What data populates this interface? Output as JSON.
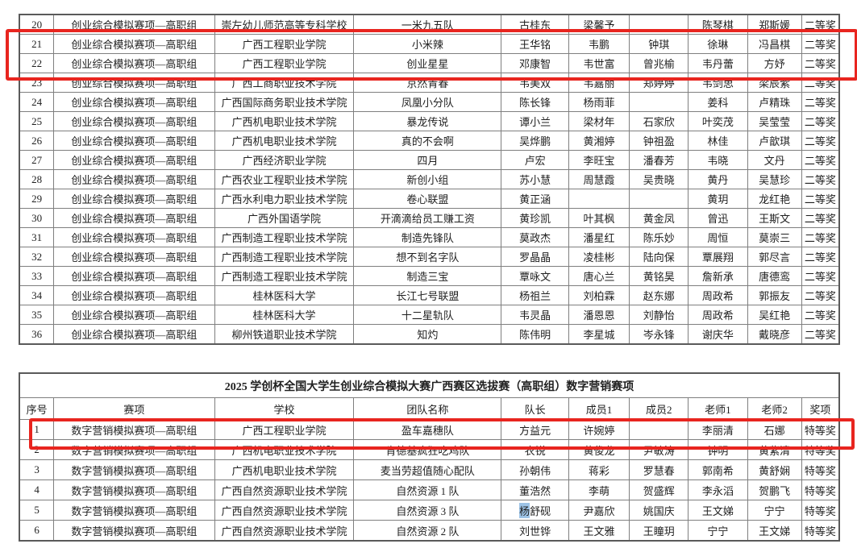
{
  "annotations": {
    "box_color": "#e8251f",
    "selection_color": "#9dc3e6",
    "top_box_label": "rows 21-22 highlighted",
    "bottom_box_label": "row 1 highlighted"
  },
  "top_table": {
    "rows": [
      {
        "no": "20",
        "event": "创业综合模拟赛项—高职组",
        "school": "崇左幼儿师范高等专科学校",
        "team": "一米九五队",
        "captain": "古桂东",
        "member1": "梁馨予",
        "member2": "",
        "teacher1": "陈琴棋",
        "teacher2": "郑斯媛",
        "award": "二等奖"
      },
      {
        "no": "21",
        "event": "创业综合模拟赛项—高职组",
        "school": "广西工程职业学院",
        "team": "小米辣",
        "captain": "王华铭",
        "member1": "韦鹏",
        "member2": "钟琪",
        "teacher1": "徐琳",
        "teacher2": "冯昌棋",
        "award": "二等奖"
      },
      {
        "no": "22",
        "event": "创业综合模拟赛项—高职组",
        "school": "广西工程职业学院",
        "team": "创业星星",
        "captain": "邓康智",
        "member1": "韦世富",
        "member2": "曾兆榆",
        "teacher1": "韦丹蕾",
        "teacher2": "方妤",
        "award": "二等奖"
      },
      {
        "no": "23",
        "event": "创业综合模拟赛项—高职组",
        "school": "广西工商职业技术学院",
        "team": "京然青春",
        "captain": "韦美双",
        "member1": "韦嘉丽",
        "member2": "郑婷婷",
        "teacher1": "韦剑思",
        "teacher2": "梁辰紫",
        "award": "二等奖"
      },
      {
        "no": "24",
        "event": "创业综合模拟赛项—高职组",
        "school": "广西国际商务职业技术学院",
        "team": "凤凰小分队",
        "captain": "陈长锋",
        "member1": "杨雨菲",
        "member2": "",
        "teacher1": "姜科",
        "teacher2": "卢精珠",
        "award": "二等奖"
      },
      {
        "no": "25",
        "event": "创业综合模拟赛项—高职组",
        "school": "广西机电职业技术学院",
        "team": "暴龙传说",
        "captain": "谭小兰",
        "member1": "梁材年",
        "member2": "石家欣",
        "teacher1": "叶奕茂",
        "teacher2": "吴莹莹",
        "award": "二等奖"
      },
      {
        "no": "26",
        "event": "创业综合模拟赛项—高职组",
        "school": "广西机电职业技术学院",
        "team": "真的不会啊",
        "captain": "吴烨鹏",
        "member1": "黄湘婷",
        "member2": "钟祖盈",
        "teacher1": "林佳",
        "teacher2": "卢歆琪",
        "award": "二等奖"
      },
      {
        "no": "27",
        "event": "创业综合模拟赛项—高职组",
        "school": "广西经济职业学院",
        "team": "四月",
        "captain": "卢宏",
        "member1": "李旺宝",
        "member2": "潘春芳",
        "teacher1": "韦晓",
        "teacher2": "文丹",
        "award": "二等奖"
      },
      {
        "no": "28",
        "event": "创业综合模拟赛项—高职组",
        "school": "广西农业工程职业技术学院",
        "team": "新创小组",
        "captain": "苏小慧",
        "member1": "周慧霞",
        "member2": "吴贵晓",
        "teacher1": "黄丹",
        "teacher2": "吴慧珍",
        "award": "二等奖"
      },
      {
        "no": "29",
        "event": "创业综合模拟赛项—高职组",
        "school": "广西水利电力职业技术学院",
        "team": "卷心联盟",
        "captain": "黄正涵",
        "member1": "",
        "member2": "",
        "teacher1": "黄玥",
        "teacher2": "龙红艳",
        "award": "二等奖"
      },
      {
        "no": "30",
        "event": "创业综合模拟赛项—高职组",
        "school": "广西外国语学院",
        "team": "开滴滴给员工赚工资",
        "captain": "黄珍凯",
        "member1": "叶其枫",
        "member2": "黄金凤",
        "teacher1": "曾迅",
        "teacher2": "王斯文",
        "award": "二等奖"
      },
      {
        "no": "31",
        "event": "创业综合模拟赛项—高职组",
        "school": "广西制造工程职业技术学院",
        "team": "制造先锋队",
        "captain": "莫政杰",
        "member1": "潘星红",
        "member2": "陈乐妙",
        "teacher1": "周恒",
        "teacher2": "莫崇三",
        "award": "二等奖"
      },
      {
        "no": "32",
        "event": "创业综合模拟赛项—高职组",
        "school": "广西制造工程职业技术学院",
        "team": "想不到名字队",
        "captain": "罗晶晶",
        "member1": "凌桂彬",
        "member2": "陆向保",
        "teacher1": "覃展翔",
        "teacher2": "郭尽言",
        "award": "二等奖"
      },
      {
        "no": "33",
        "event": "创业综合模拟赛项—高职组",
        "school": "广西制造工程职业技术学院",
        "team": "制造三宝",
        "captain": "覃咏文",
        "member1": "唐心兰",
        "member2": "黄铭昊",
        "teacher1": "詹新承",
        "teacher2": "唐德鸾",
        "award": "二等奖"
      },
      {
        "no": "34",
        "event": "创业综合模拟赛项—高职组",
        "school": "桂林医科大学",
        "team": "长江七号联盟",
        "captain": "杨祖兰",
        "member1": "刘柏霖",
        "member2": "赵东娜",
        "teacher1": "周政希",
        "teacher2": "郭振友",
        "award": "二等奖"
      },
      {
        "no": "35",
        "event": "创业综合模拟赛项—高职组",
        "school": "桂林医科大学",
        "team": "十二星轨队",
        "captain": "韦灵晶",
        "member1": "潘恩恩",
        "member2": "刘静怡",
        "teacher1": "周政希",
        "teacher2": "吴红艳",
        "award": "二等奖"
      },
      {
        "no": "36",
        "event": "创业综合模拟赛项—高职组",
        "school": "柳州铁道职业技术学院",
        "team": "知灼",
        "captain": "陈伟明",
        "member1": "李星城",
        "member2": "岑永锋",
        "teacher1": "谢庆华",
        "teacher2": "戴晓彦",
        "award": "二等奖"
      }
    ]
  },
  "bottom_table": {
    "title": "2025 学创杯全国大学生创业综合模拟大赛广西赛区选拔赛（高职组）数字营销赛项",
    "headers": [
      "序号",
      "赛项",
      "学校",
      "团队名称",
      "队长",
      "成员1",
      "成员2",
      "老师1",
      "老师2",
      "奖项"
    ],
    "rows": [
      {
        "no": "1",
        "event": "数字营销模拟赛项—高职组",
        "school": "广西工程职业学院",
        "team": "盈车嘉穗队",
        "captain": "方益元",
        "member1": "许婉婷",
        "member2": "",
        "teacher1": "李丽清",
        "teacher2": "石娜",
        "award": "特等奖"
      },
      {
        "no": "2",
        "event": "数字营销模拟赛项—高职组",
        "school": "广西机电职业技术学院",
        "team": "肯德基疯狂吃鸡队",
        "captain": "农锐",
        "member1": "黄俊龙",
        "member2": "尹敏涛",
        "teacher1": "钟明",
        "teacher2": "黄紫清",
        "award": "特等奖"
      },
      {
        "no": "3",
        "event": "数字营销模拟赛项—高职组",
        "school": "广西机电职业技术学院",
        "team": "麦当劳超值随心配队",
        "captain": "孙朝伟",
        "member1": "蒋彩",
        "member2": "罗慧春",
        "teacher1": "郭南希",
        "teacher2": "黄舒娴",
        "award": "特等奖"
      },
      {
        "no": "4",
        "event": "数字营销模拟赛项—高职组",
        "school": "广西自然资源职业技术学院",
        "team": "自然资源 1 队",
        "captain": "董浩然",
        "member1": "李萌",
        "member2": "贺盛辉",
        "teacher1": "李永滔",
        "teacher2": "贺鹏飞",
        "award": "特等奖"
      },
      {
        "no": "5",
        "event": "数字营销模拟赛项—高职组",
        "school": "广西自然资源职业技术学院",
        "team": "自然资源 3 队",
        "captain": "杨舒砚",
        "captain_sel": "杨",
        "member1": "尹嘉欣",
        "member2": "姚国庆",
        "teacher1": "王文娣",
        "teacher2": "宁宁",
        "award": "特等奖"
      },
      {
        "no": "6",
        "event": "数字营销模拟赛项—高职组",
        "school": "广西自然资源职业技术学院",
        "team": "自然资源 2 队",
        "captain": "刘世铧",
        "member1": "王文雅",
        "member2": "王瞳玥",
        "teacher1": "宁宁",
        "teacher2": "王文娣",
        "award": "特等奖"
      }
    ]
  }
}
